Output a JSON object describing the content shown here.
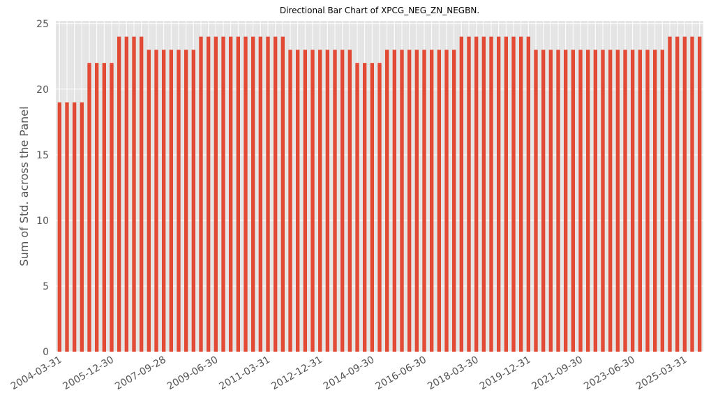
{
  "chart_data": {
    "type": "bar",
    "title": "Directional Bar Chart of XPCG_NEG_ZN_NEGBN.",
    "ylabel": "Sum of Std. across the Panel",
    "categories": [
      "2004-03-31",
      null,
      null,
      null,
      null,
      null,
      null,
      "2005-12-30",
      null,
      null,
      null,
      null,
      null,
      null,
      "2007-09-28",
      null,
      null,
      null,
      null,
      null,
      null,
      "2009-06-30",
      null,
      null,
      null,
      null,
      null,
      null,
      "2011-03-31",
      null,
      null,
      null,
      null,
      null,
      null,
      "2012-12-31",
      null,
      null,
      null,
      null,
      null,
      null,
      "2014-09-30",
      null,
      null,
      null,
      null,
      null,
      null,
      "2016-06-30",
      null,
      null,
      null,
      null,
      null,
      null,
      "2018-03-30",
      null,
      null,
      null,
      null,
      null,
      null,
      "2019-12-31",
      null,
      null,
      null,
      null,
      null,
      null,
      "2021-09-30",
      null,
      null,
      null,
      null,
      null,
      null,
      "2023-06-30",
      null,
      null,
      null,
      null,
      null,
      null,
      "2025-03-31",
      null,
      null
    ],
    "values": [
      19,
      19,
      19,
      19,
      22,
      22,
      22,
      22,
      24,
      24,
      24,
      24,
      23,
      23,
      23,
      23,
      23,
      23,
      23,
      24,
      24,
      24,
      24,
      24,
      24,
      24,
      24,
      24,
      24,
      24,
      24,
      23,
      23,
      23,
      23,
      23,
      23,
      23,
      23,
      23,
      22,
      22,
      22,
      22,
      23,
      23,
      23,
      23,
      23,
      23,
      23,
      23,
      23,
      23,
      24,
      24,
      24,
      24,
      24,
      24,
      24,
      24,
      24,
      24,
      23,
      23,
      23,
      23,
      23,
      23,
      23,
      23,
      23,
      23,
      23,
      23,
      23,
      23,
      23,
      23,
      23,
      23,
      24,
      24,
      24,
      24,
      24
    ],
    "color": "#e24a33",
    "ylim": [
      0,
      25.2
    ],
    "yticks": [
      0,
      5,
      10,
      15,
      20,
      25
    ],
    "grid": true
  }
}
